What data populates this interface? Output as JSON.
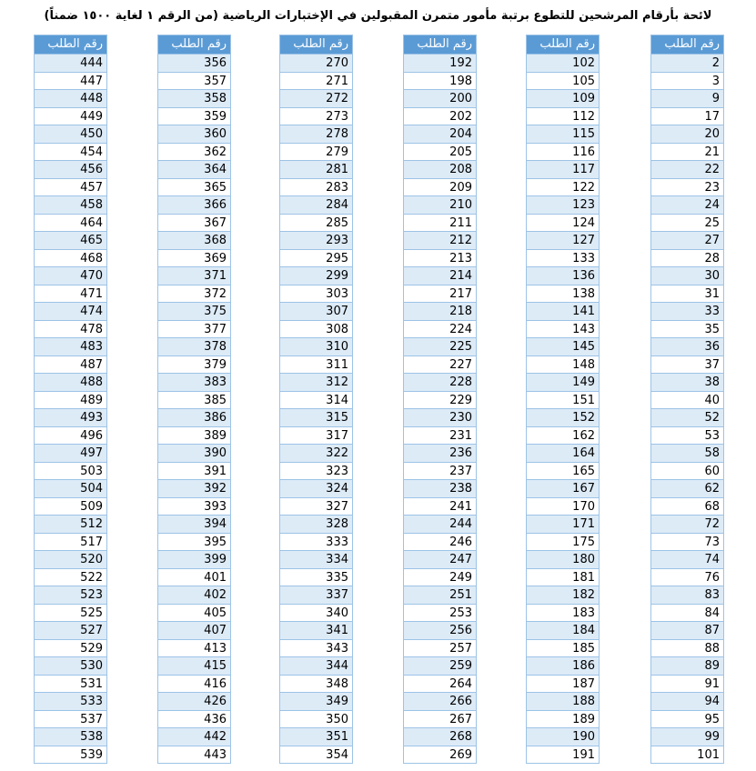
{
  "title": "لائحة بأرقام المرشحين للتطوع برتبة مأمور متمرن المقبولين في الإختبارات الرياضية (من الرقم ١ لغاية ١٥٠٠ ضمناً)",
  "tables": [
    {
      "header": "رقم الطلب",
      "rows": [
        2,
        3,
        9,
        17,
        20,
        21,
        22,
        23,
        24,
        25,
        27,
        28,
        30,
        31,
        33,
        35,
        36,
        37,
        38,
        40,
        52,
        53,
        58,
        60,
        62,
        68,
        72,
        73,
        74,
        76,
        83,
        84,
        87,
        88,
        89,
        91,
        94,
        95,
        99,
        101
      ]
    },
    {
      "header": "رقم الطلب",
      "rows": [
        102,
        105,
        109,
        112,
        115,
        116,
        117,
        122,
        123,
        124,
        127,
        133,
        136,
        138,
        141,
        143,
        145,
        148,
        149,
        151,
        152,
        162,
        164,
        165,
        167,
        170,
        171,
        175,
        180,
        181,
        182,
        183,
        184,
        185,
        186,
        187,
        188,
        189,
        190,
        191
      ]
    },
    {
      "header": "رقم الطلب",
      "rows": [
        192,
        198,
        200,
        202,
        204,
        205,
        208,
        209,
        210,
        211,
        212,
        213,
        214,
        217,
        218,
        224,
        225,
        227,
        228,
        229,
        230,
        231,
        236,
        237,
        238,
        241,
        244,
        246,
        247,
        249,
        251,
        253,
        256,
        257,
        259,
        264,
        266,
        267,
        268,
        269
      ]
    },
    {
      "header": "رقم الطلب",
      "rows": [
        270,
        271,
        272,
        273,
        278,
        279,
        281,
        283,
        284,
        285,
        293,
        295,
        299,
        303,
        307,
        308,
        310,
        311,
        312,
        314,
        315,
        317,
        322,
        323,
        324,
        327,
        328,
        333,
        334,
        335,
        337,
        340,
        341,
        343,
        344,
        348,
        349,
        350,
        351,
        354
      ]
    },
    {
      "header": "رقم الطلب",
      "rows": [
        356,
        357,
        358,
        359,
        360,
        362,
        364,
        365,
        366,
        367,
        368,
        369,
        371,
        372,
        375,
        377,
        378,
        379,
        383,
        385,
        386,
        389,
        390,
        391,
        392,
        393,
        394,
        395,
        399,
        401,
        402,
        405,
        407,
        413,
        415,
        416,
        426,
        436,
        442,
        443
      ]
    },
    {
      "header": "رقم الطلب",
      "rows": [
        444,
        447,
        448,
        449,
        450,
        454,
        456,
        457,
        458,
        464,
        465,
        468,
        470,
        471,
        474,
        478,
        483,
        487,
        488,
        489,
        493,
        496,
        497,
        503,
        504,
        509,
        512,
        517,
        520,
        522,
        523,
        525,
        527,
        529,
        530,
        531,
        533,
        537,
        538,
        539
      ]
    }
  ]
}
